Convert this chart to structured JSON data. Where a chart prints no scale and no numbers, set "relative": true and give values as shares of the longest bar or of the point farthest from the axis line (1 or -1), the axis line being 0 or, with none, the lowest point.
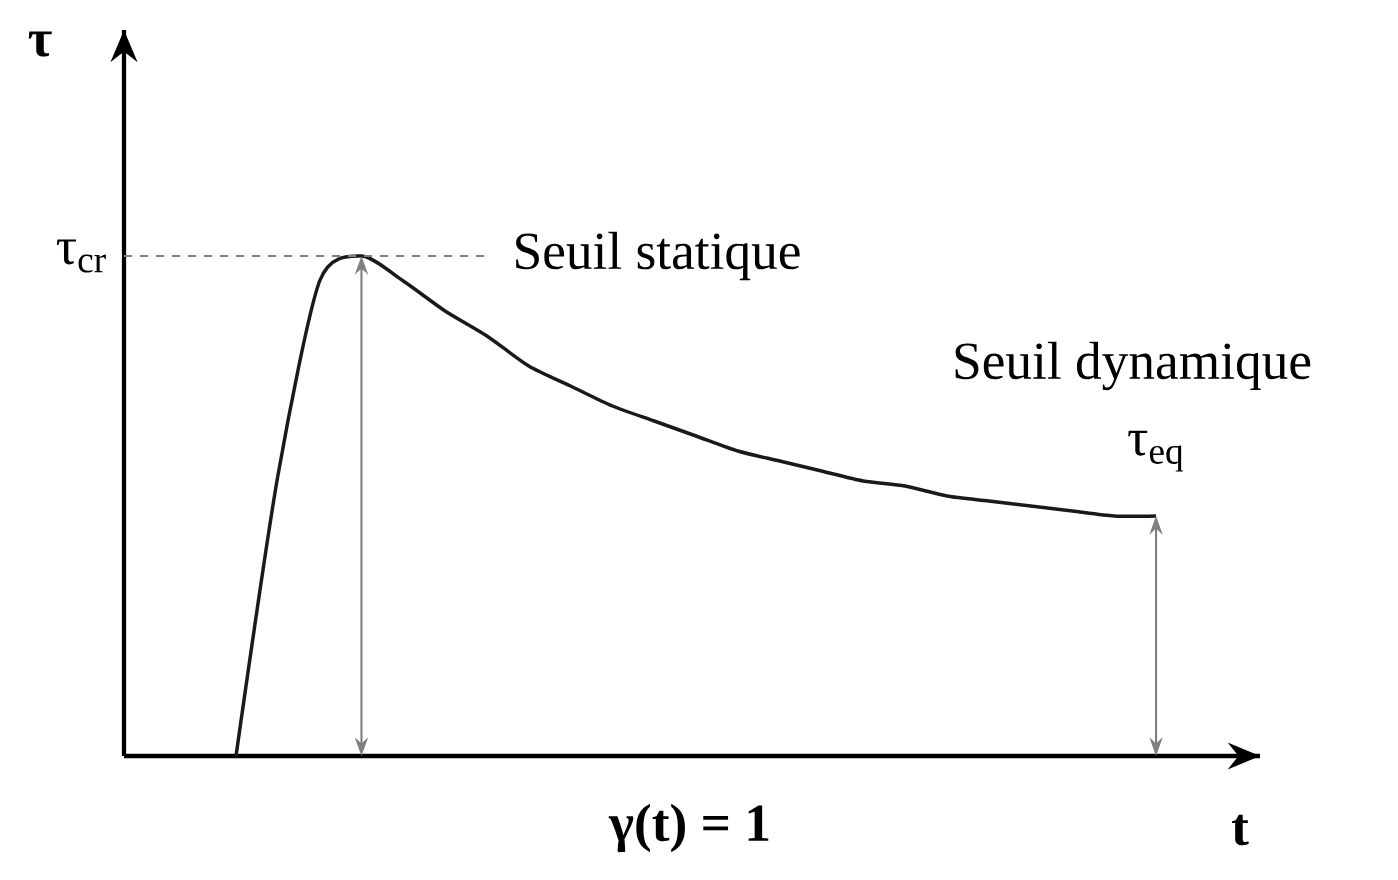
{
  "chart_data": {
    "type": "line",
    "relative": true,
    "color": "#1a1a1a",
    "line_style": "solid",
    "marker": "none",
    "xlabel": "t",
    "ylabel": "τ",
    "categories": [
      null,
      null,
      null,
      null,
      null,
      null,
      null,
      null,
      null,
      null,
      null,
      null,
      null,
      null,
      null,
      null,
      null,
      null,
      null,
      null,
      null,
      null,
      null
    ],
    "values": [
      0,
      0.56,
      0.95,
      1,
      0.95,
      0.89,
      0.84,
      0.78,
      0.74,
      0.7,
      0.67,
      0.64,
      0.61,
      0.59,
      0.57,
      0.55,
      0.54,
      0.52,
      0.51,
      0.5,
      0.49,
      0.48,
      0.48
    ],
    "ref_lines": [
      {
        "axis": "y",
        "value": 1,
        "label": "Seuil statique",
        "color": "#808080",
        "line_style": "dashed"
      }
    ],
    "annotations": [
      "τ$_{cr}$",
      "Seuil dynamique",
      "τ$_{eq}$",
      "γ(t) = 1"
    ]
  }
}
